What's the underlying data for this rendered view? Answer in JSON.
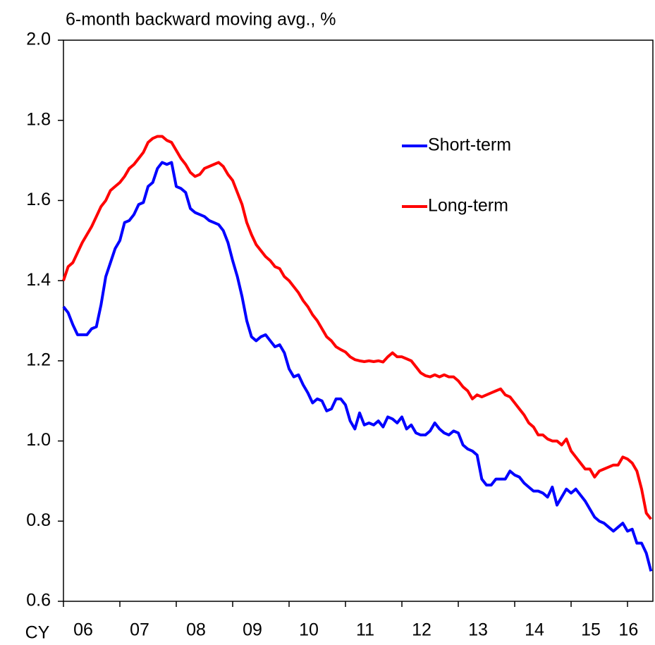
{
  "chart_data": {
    "type": "line",
    "title": "6-month backward moving avg., %",
    "xlabel": "CY",
    "categories": [
      null,
      null,
      null,
      null,
      null,
      null,
      "06",
      null,
      null,
      null,
      null,
      null,
      null,
      null,
      null,
      null,
      null,
      null,
      "07",
      null,
      null,
      null,
      null,
      null,
      null,
      null,
      null,
      null,
      null,
      null,
      "08",
      null,
      null,
      null,
      null,
      null,
      null,
      null,
      null,
      null,
      null,
      null,
      "09",
      null,
      null,
      null,
      null,
      null,
      null,
      null,
      null,
      null,
      null,
      null,
      "10",
      null,
      null,
      null,
      null,
      null,
      null,
      null,
      null,
      null,
      null,
      null,
      "11",
      null,
      null,
      null,
      null,
      null,
      null,
      null,
      null,
      null,
      null,
      null,
      "12",
      null,
      null,
      null,
      null,
      null,
      null,
      null,
      null,
      null,
      null,
      null,
      "13",
      null,
      null,
      null,
      null,
      null,
      null,
      null,
      null,
      null,
      null,
      null,
      "14",
      null,
      null,
      null,
      null,
      null,
      null,
      null,
      null,
      null,
      null,
      null,
      "15",
      null,
      null,
      null,
      null,
      null,
      null,
      null,
      "16",
      null,
      null,
      null
    ],
    "series": [
      {
        "name": "Short-term",
        "color": "#0000ff",
        "values": [
          1.335,
          1.32,
          1.29,
          1.265,
          1.265,
          1.265,
          1.28,
          1.285,
          1.34,
          1.41,
          1.445,
          1.48,
          1.5,
          1.545,
          1.55,
          1.565,
          1.59,
          1.595,
          1.635,
          1.645,
          1.68,
          1.695,
          1.69,
          1.695,
          1.635,
          1.63,
          1.62,
          1.58,
          1.57,
          1.565,
          1.56,
          1.55,
          1.545,
          1.54,
          1.525,
          1.495,
          1.45,
          1.41,
          1.36,
          1.3,
          1.26,
          1.25,
          1.26,
          1.265,
          1.25,
          1.235,
          1.24,
          1.22,
          1.18,
          1.16,
          1.165,
          1.14,
          1.12,
          1.095,
          1.105,
          1.1,
          1.075,
          1.08,
          1.105,
          1.105,
          1.09,
          1.05,
          1.03,
          1.07,
          1.04,
          1.045,
          1.04,
          1.05,
          1.035,
          1.06,
          1.055,
          1.045,
          1.06,
          1.03,
          1.04,
          1.02,
          1.015,
          1.015,
          1.025,
          1.045,
          1.03,
          1.02,
          1.015,
          1.025,
          1.02,
          0.99,
          0.98,
          0.975,
          0.965,
          0.905,
          0.89,
          0.89,
          0.905,
          0.905,
          0.905,
          0.925,
          0.915,
          0.91,
          0.895,
          0.885,
          0.875,
          0.875,
          0.87,
          0.86,
          0.885,
          0.84,
          0.86,
          0.88,
          0.87,
          0.88,
          0.865,
          0.85,
          0.83,
          0.81,
          0.8,
          0.795,
          0.785,
          0.775,
          0.785,
          0.795,
          0.775,
          0.78,
          0.745,
          0.745,
          0.72,
          0.675
        ]
      },
      {
        "name": "Long-term",
        "color": "#ff0000",
        "values": [
          1.4,
          1.435,
          1.445,
          1.47,
          1.495,
          1.515,
          1.535,
          1.56,
          1.585,
          1.6,
          1.625,
          1.635,
          1.645,
          1.66,
          1.68,
          1.69,
          1.705,
          1.72,
          1.745,
          1.755,
          1.76,
          1.76,
          1.75,
          1.745,
          1.725,
          1.705,
          1.69,
          1.67,
          1.66,
          1.665,
          1.68,
          1.685,
          1.69,
          1.695,
          1.685,
          1.665,
          1.65,
          1.62,
          1.59,
          1.545,
          1.515,
          1.49,
          1.475,
          1.46,
          1.45,
          1.435,
          1.43,
          1.41,
          1.4,
          1.385,
          1.37,
          1.35,
          1.335,
          1.315,
          1.3,
          1.28,
          1.26,
          1.25,
          1.235,
          1.228,
          1.222,
          1.21,
          1.203,
          1.2,
          1.198,
          1.2,
          1.198,
          1.2,
          1.197,
          1.21,
          1.22,
          1.21,
          1.21,
          1.205,
          1.2,
          1.185,
          1.17,
          1.163,
          1.16,
          1.165,
          1.16,
          1.165,
          1.16,
          1.16,
          1.15,
          1.135,
          1.125,
          1.105,
          1.115,
          1.11,
          1.115,
          1.12,
          1.125,
          1.13,
          1.115,
          1.11,
          1.095,
          1.08,
          1.065,
          1.045,
          1.035,
          1.015,
          1.015,
          1.005,
          1.0,
          1.0,
          0.99,
          1.005,
          0.975,
          0.96,
          0.945,
          0.93,
          0.93,
          0.91,
          0.925,
          0.93,
          0.935,
          0.94,
          0.94,
          0.96,
          0.955,
          0.945,
          0.925,
          0.88,
          0.82,
          0.805
        ]
      }
    ],
    "ylim": [
      0.6,
      2.0
    ],
    "yticks": [
      0.6,
      0.8,
      {
        "value": 1.0,
        "label": "1.0"
      },
      1.2,
      1.4,
      1.6,
      1.8,
      {
        "value": 2.0,
        "label": "2.0"
      }
    ],
    "grid": false,
    "legend": "upper right"
  }
}
